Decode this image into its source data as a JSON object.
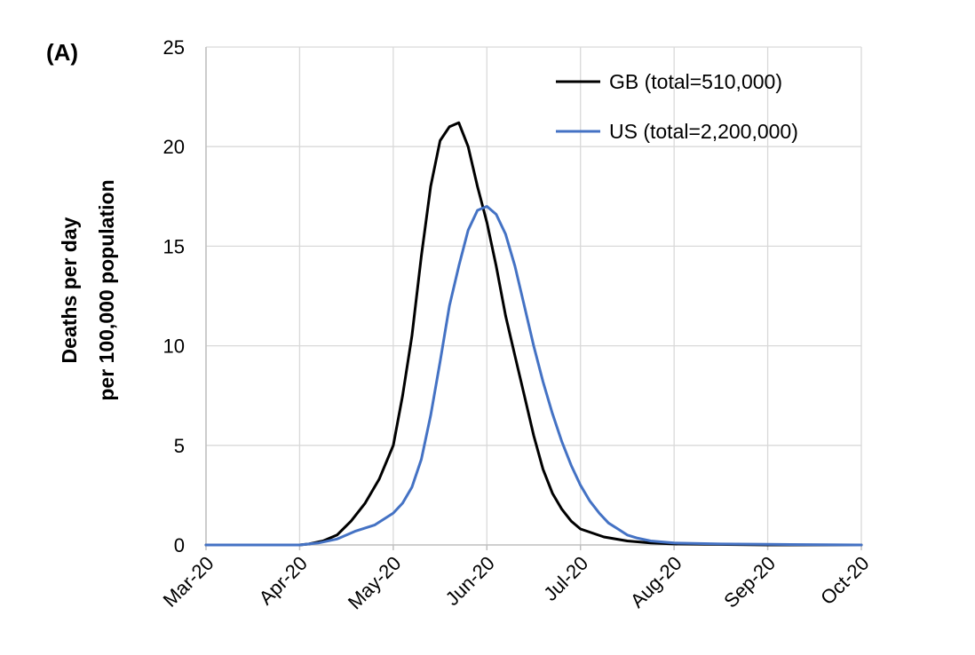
{
  "panel_label": "(A)",
  "chart_data": {
    "type": "line",
    "title": "",
    "ylabel_lines": [
      "Deaths per day",
      "per 100,000 population"
    ],
    "xlabel": "",
    "ylim": [
      0,
      25
    ],
    "yticks": [
      0,
      5,
      10,
      15,
      20,
      25
    ],
    "xticks": [
      "Mar-20",
      "Apr-20",
      "May-20",
      "Jun-20",
      "Jul-20",
      "Aug-20",
      "Sep-20",
      "Oct-20"
    ],
    "x_unit": "month",
    "grid": true,
    "legend_position": "top-right",
    "series": [
      {
        "name": "GB (total=510,000)",
        "color": "#000000",
        "points": [
          [
            "Mar-20",
            0.0
          ],
          [
            "Apr-20",
            0.0
          ],
          [
            "Apr-20 +0.1",
            0.05
          ],
          [
            "Apr-20 +0.25",
            0.2
          ],
          [
            "Apr-20 +0.4",
            0.5
          ],
          [
            "Apr-20 +0.55",
            1.2
          ],
          [
            "Apr-20 +0.7",
            2.1
          ],
          [
            "Apr-20 +0.85",
            3.3
          ],
          [
            "May-20",
            5.0
          ],
          [
            "May-20 +0.1",
            7.5
          ],
          [
            "May-20 +0.2",
            10.5
          ],
          [
            "May-20 +0.3",
            14.5
          ],
          [
            "May-20 +0.4",
            18.0
          ],
          [
            "May-20 +0.5",
            20.3
          ],
          [
            "May-20 +0.6",
            21.0
          ],
          [
            "May-20 +0.7",
            21.2
          ],
          [
            "May-20 +0.8",
            20.0
          ],
          [
            "May-20 +0.9",
            18.0
          ],
          [
            "Jun-20",
            16.2
          ],
          [
            "Jun-20 +0.1",
            14.0
          ],
          [
            "Jun-20 +0.2",
            11.5
          ],
          [
            "Jun-20 +0.3",
            9.5
          ],
          [
            "Jun-20 +0.4",
            7.5
          ],
          [
            "Jun-20 +0.5",
            5.5
          ],
          [
            "Jun-20 +0.6",
            3.8
          ],
          [
            "Jun-20 +0.7",
            2.6
          ],
          [
            "Jun-20 +0.8",
            1.8
          ],
          [
            "Jun-20 +0.9",
            1.2
          ],
          [
            "Jul-20",
            0.8
          ],
          [
            "Jul-20 +0.25",
            0.4
          ],
          [
            "Jul-20 +0.5",
            0.2
          ],
          [
            "Jul-20 +0.75",
            0.1
          ],
          [
            "Aug-20",
            0.05
          ],
          [
            "Sep-20",
            0.0
          ],
          [
            "Oct-20",
            0.0
          ]
        ],
        "values": [
          [
            0.0,
            0.0
          ],
          [
            1.0,
            0.0
          ],
          [
            1.1,
            0.05
          ],
          [
            1.25,
            0.2
          ],
          [
            1.4,
            0.5
          ],
          [
            1.55,
            1.2
          ],
          [
            1.7,
            2.1
          ],
          [
            1.85,
            3.3
          ],
          [
            2.0,
            5.0
          ],
          [
            2.1,
            7.5
          ],
          [
            2.2,
            10.5
          ],
          [
            2.3,
            14.5
          ],
          [
            2.4,
            18.0
          ],
          [
            2.5,
            20.3
          ],
          [
            2.6,
            21.0
          ],
          [
            2.7,
            21.2
          ],
          [
            2.8,
            20.0
          ],
          [
            2.9,
            18.0
          ],
          [
            3.0,
            16.2
          ],
          [
            3.1,
            14.0
          ],
          [
            3.2,
            11.5
          ],
          [
            3.3,
            9.5
          ],
          [
            3.4,
            7.5
          ],
          [
            3.5,
            5.5
          ],
          [
            3.6,
            3.8
          ],
          [
            3.7,
            2.6
          ],
          [
            3.8,
            1.8
          ],
          [
            3.9,
            1.2
          ],
          [
            4.0,
            0.8
          ],
          [
            4.25,
            0.4
          ],
          [
            4.5,
            0.2
          ],
          [
            4.75,
            0.1
          ],
          [
            5.0,
            0.05
          ],
          [
            6.0,
            0.0
          ],
          [
            7.0,
            0.0
          ]
        ]
      },
      {
        "name": "US (total=2,200,000)",
        "color": "#4472C4",
        "points": [],
        "values": [
          [
            0.0,
            0.0
          ],
          [
            1.0,
            0.0
          ],
          [
            1.2,
            0.1
          ],
          [
            1.4,
            0.3
          ],
          [
            1.6,
            0.7
          ],
          [
            1.8,
            1.0
          ],
          [
            2.0,
            1.6
          ],
          [
            2.1,
            2.1
          ],
          [
            2.2,
            2.9
          ],
          [
            2.3,
            4.3
          ],
          [
            2.4,
            6.5
          ],
          [
            2.5,
            9.2
          ],
          [
            2.6,
            12.0
          ],
          [
            2.7,
            14.0
          ],
          [
            2.8,
            15.8
          ],
          [
            2.9,
            16.8
          ],
          [
            3.0,
            17.0
          ],
          [
            3.1,
            16.6
          ],
          [
            3.2,
            15.6
          ],
          [
            3.3,
            14.0
          ],
          [
            3.4,
            12.0
          ],
          [
            3.5,
            10.0
          ],
          [
            3.6,
            8.2
          ],
          [
            3.7,
            6.6
          ],
          [
            3.8,
            5.2
          ],
          [
            3.9,
            4.0
          ],
          [
            4.0,
            3.0
          ],
          [
            4.1,
            2.2
          ],
          [
            4.2,
            1.6
          ],
          [
            4.3,
            1.1
          ],
          [
            4.4,
            0.8
          ],
          [
            4.5,
            0.5
          ],
          [
            4.6,
            0.35
          ],
          [
            4.75,
            0.2
          ],
          [
            5.0,
            0.1
          ],
          [
            5.5,
            0.05
          ],
          [
            6.0,
            0.03
          ],
          [
            7.0,
            0.0
          ]
        ]
      }
    ]
  }
}
